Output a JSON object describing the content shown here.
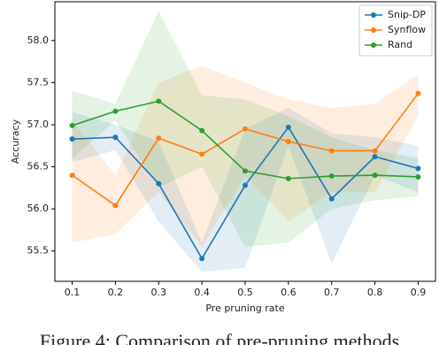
{
  "chart_data": {
    "type": "line",
    "x_label": "Pre pruning rate",
    "y_label": "Accuracy",
    "x": [
      0.1,
      0.2,
      0.3,
      0.4,
      0.5,
      0.6,
      0.7,
      0.8,
      0.9
    ],
    "xlim": [
      0.06,
      0.94
    ],
    "xticks": [
      0.1,
      0.2,
      0.3,
      0.4,
      0.5,
      0.6,
      0.7,
      0.8,
      0.9
    ],
    "ylim": [
      55.14,
      58.46
    ],
    "yticks": [
      {
        "value": 55.5,
        "label": "55.5"
      },
      {
        "value": 56,
        "label": "56.0"
      },
      {
        "value": 56.5,
        "label": "56.5"
      },
      {
        "value": 57,
        "label": "57.0"
      },
      {
        "value": 57.5,
        "label": "57.5"
      },
      {
        "value": 58,
        "label": "58.0"
      }
    ],
    "legend": "upper right",
    "series": [
      {
        "name": "Snip-DP",
        "color": "#1f77b4",
        "values": [
          56.83,
          56.85,
          56.3,
          55.41,
          56.28,
          56.97,
          56.12,
          56.62,
          56.48
        ],
        "upper": [
          57.15,
          57.0,
          56.8,
          55.6,
          56.95,
          57.2,
          56.9,
          56.85,
          56.75
        ],
        "lower": [
          56.55,
          56.7,
          55.85,
          55.25,
          55.3,
          56.75,
          55.35,
          56.4,
          56.2
        ]
      },
      {
        "name": "Synflow",
        "color": "#ff7f0e",
        "values": [
          56.4,
          56.04,
          56.84,
          56.65,
          56.95,
          56.8,
          56.69,
          56.69,
          57.37
        ],
        "upper": [
          57.05,
          56.4,
          57.5,
          57.7,
          57.5,
          57.3,
          57.2,
          57.25,
          57.6
        ],
        "lower": [
          55.6,
          55.7,
          56.2,
          55.55,
          56.4,
          55.85,
          56.2,
          56.2,
          57.1
        ]
      },
      {
        "name": "Rand",
        "color": "#2ca02c",
        "values": [
          56.99,
          57.16,
          57.28,
          56.93,
          56.45,
          56.36,
          56.39,
          56.4,
          56.38
        ],
        "upper": [
          57.4,
          57.25,
          58.35,
          57.35,
          57.3,
          57.1,
          56.85,
          56.7,
          56.6
        ],
        "lower": [
          56.6,
          57.05,
          56.25,
          56.5,
          55.55,
          55.6,
          56.0,
          56.1,
          56.15
        ]
      }
    ],
    "caption": "Figure 4: Comparison of pre-pruning methods"
  }
}
